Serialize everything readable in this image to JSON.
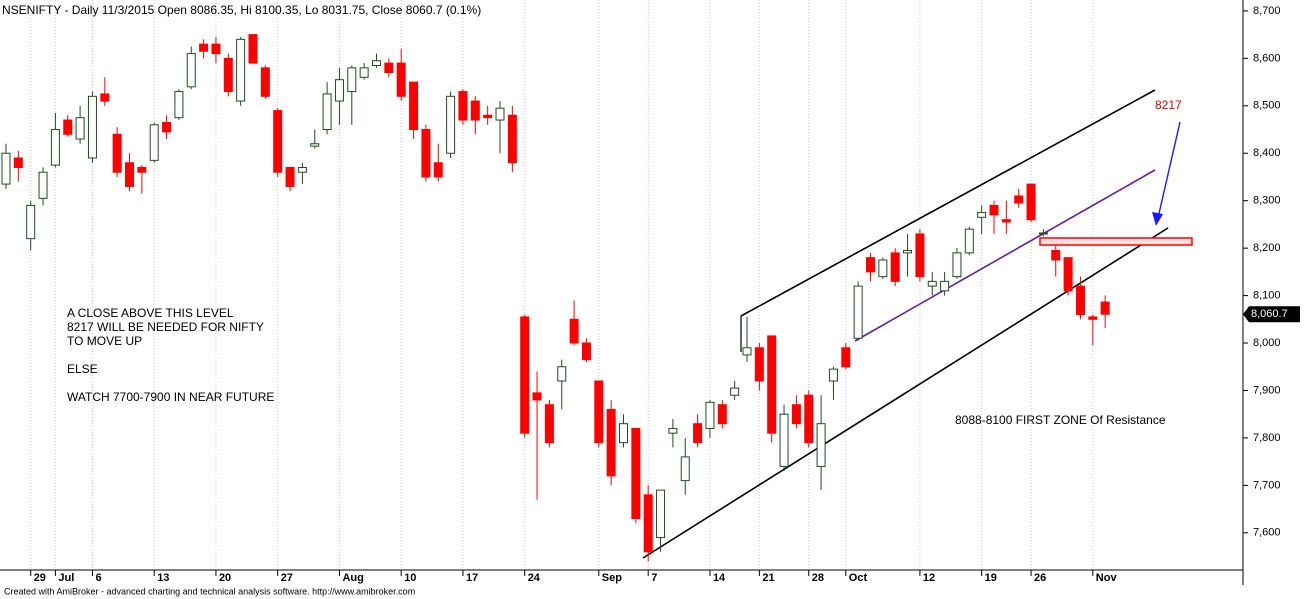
{
  "chart_data": {
    "type": "candlestick",
    "title": "NSENIFTY - Daily 11/3/2015 Open 8086.35, Hi 8100.35, Lo 8031.75, Close 8060.7 (0.1%)",
    "footer": "Created with AmiBroker - advanced charting and technical analysis software. http://www.amibroker.com",
    "annotations": [
      "A CLOSE ABOVE THIS LEVEL",
      "8217 WILL BE NEEDED FOR NIFTY",
      "TO MOVE UP",
      "ELSE",
      "WATCH 7700-7900 IN NEAR FUTURE",
      "8088-8100 FIRST ZONE Of Resistance",
      "8217"
    ],
    "last_price": {
      "value": 8060.7,
      "label": "8,060.7"
    },
    "up_color": "#1e4d1e",
    "down_color": "#ff0000",
    "grid": true,
    "categories": [
      null,
      null,
      "29",
      null,
      "Jul",
      null,
      null,
      "6",
      null,
      null,
      null,
      null,
      "13",
      null,
      null,
      null,
      null,
      "20",
      null,
      null,
      null,
      null,
      "27",
      null,
      null,
      null,
      null,
      "Aug",
      null,
      null,
      null,
      null,
      "10",
      null,
      null,
      null,
      null,
      "17",
      null,
      null,
      null,
      null,
      "24",
      null,
      null,
      null,
      null,
      null,
      "Sep",
      null,
      null,
      null,
      "7",
      null,
      null,
      null,
      null,
      "14",
      null,
      null,
      null,
      "21",
      null,
      null,
      null,
      "28",
      null,
      null,
      "Oct",
      null,
      null,
      null,
      null,
      null,
      "12",
      null,
      null,
      null,
      null,
      "19",
      null,
      null,
      null,
      "26",
      null,
      null,
      null,
      null,
      "Nov",
      null
    ],
    "open": [
      8335,
      8390,
      8220,
      8305,
      8375,
      8470,
      8430,
      8390,
      8525,
      8440,
      8380,
      8370,
      8385,
      8465,
      8475,
      8540,
      8630,
      8630,
      8600,
      8510,
      8650,
      8580,
      8490,
      8370,
      8360,
      8415,
      8450,
      8510,
      8530,
      8560,
      8585,
      8590,
      8590,
      8550,
      8450,
      8380,
      8400,
      8530,
      8510,
      8480,
      8470,
      8480,
      8055,
      7895,
      7870,
      7920,
      8050,
      8000,
      7920,
      7860,
      7790,
      7820,
      7680,
      7590,
      7810,
      7710,
      7830,
      7820,
      7870,
      7890,
      7975,
      7990,
      8015,
      7740,
      7870,
      7890,
      7740,
      7920,
      7990,
      8010,
      8180,
      8140,
      8190,
      8190,
      8230,
      8120,
      8110,
      8140,
      8190,
      8265,
      8290,
      8260,
      8310,
      8335,
      8230,
      8195,
      8180,
      8120,
      8055,
      8086.35
    ],
    "high": [
      8420,
      8405,
      8300,
      8370,
      8485,
      8480,
      8500,
      8530,
      8560,
      8455,
      8400,
      8375,
      8465,
      8480,
      8535,
      8625,
      8640,
      8645,
      8610,
      8645,
      8650,
      8585,
      8495,
      8370,
      8380,
      8450,
      8550,
      8580,
      8585,
      8590,
      8610,
      8600,
      8620,
      8550,
      8460,
      8420,
      8530,
      8535,
      8520,
      8500,
      8510,
      8500,
      8060,
      7940,
      7880,
      7965,
      8090,
      8010,
      7920,
      7880,
      7850,
      7820,
      7700,
      7690,
      7840,
      7800,
      7850,
      7880,
      7880,
      7920,
      8055,
      8000,
      8015,
      7870,
      7890,
      7900,
      7890,
      7950,
      8000,
      8130,
      8190,
      8180,
      8200,
      8230,
      8240,
      8150,
      8150,
      8200,
      8245,
      8290,
      8300,
      8300,
      8325,
      8335,
      8240,
      8205,
      8180,
      8140,
      8060,
      8100.35
    ],
    "low": [
      8325,
      8340,
      8195,
      8290,
      8370,
      8435,
      8420,
      8380,
      8500,
      8350,
      8320,
      8315,
      8380,
      8430,
      8470,
      8535,
      8600,
      8590,
      8520,
      8500,
      8590,
      8515,
      8350,
      8320,
      8335,
      8410,
      8440,
      8460,
      8460,
      8555,
      8580,
      8560,
      8510,
      8430,
      8340,
      8340,
      8390,
      8460,
      8440,
      8460,
      8400,
      8360,
      7800,
      7670,
      7780,
      7860,
      7995,
      7960,
      7780,
      7700,
      7780,
      7620,
      7540,
      7560,
      7780,
      7680,
      7780,
      7800,
      7820,
      7880,
      7960,
      7900,
      7790,
      7730,
      7820,
      7780,
      7690,
      7880,
      7945,
      8005,
      8130,
      8135,
      8120,
      8140,
      8130,
      8100,
      8100,
      8135,
      8185,
      8230,
      8230,
      8230,
      8285,
      8255,
      8225,
      8140,
      8100,
      8050,
      7995,
      8031.75
    ],
    "close": [
      8400,
      8370,
      8290,
      8360,
      8450,
      8440,
      8475,
      8520,
      8510,
      8360,
      8330,
      8360,
      8460,
      8445,
      8530,
      8610,
      8615,
      8610,
      8530,
      8640,
      8590,
      8520,
      8360,
      8330,
      8370,
      8420,
      8525,
      8555,
      8580,
      8580,
      8595,
      8570,
      8520,
      8450,
      8350,
      8350,
      8520,
      8470,
      8470,
      8475,
      8495,
      8380,
      7810,
      7880,
      7790,
      7950,
      8000,
      7965,
      7790,
      7720,
      7830,
      7630,
      7560,
      7690,
      7820,
      7760,
      7790,
      7875,
      7830,
      7905,
      7990,
      7920,
      7810,
      7850,
      7830,
      7790,
      7830,
      7945,
      7950,
      8120,
      8150,
      8175,
      8130,
      8195,
      8140,
      8130,
      8130,
      8190,
      8240,
      8275,
      8270,
      8255,
      8295,
      8260,
      8232,
      8175,
      8110,
      8060,
      8050,
      8060.7
    ],
    "ylim": [
      7490,
      8723
    ],
    "yticks": [
      {
        "value": 7600,
        "label": "7,600"
      },
      {
        "value": 7700,
        "label": "7,700"
      },
      {
        "value": 7800,
        "label": "7,800"
      },
      {
        "value": 7900,
        "label": "7,900"
      },
      {
        "value": 8000,
        "label": "8,000"
      },
      {
        "value": 8100,
        "label": "8,100"
      },
      {
        "value": 8200,
        "label": "8,200"
      },
      {
        "value": 8300,
        "label": "8,300"
      },
      {
        "value": 8400,
        "label": "8,400"
      },
      {
        "value": 8500,
        "label": "8,500"
      },
      {
        "value": 8600,
        "label": "8,600"
      },
      {
        "value": 8700,
        "label": "8,700"
      }
    ]
  }
}
